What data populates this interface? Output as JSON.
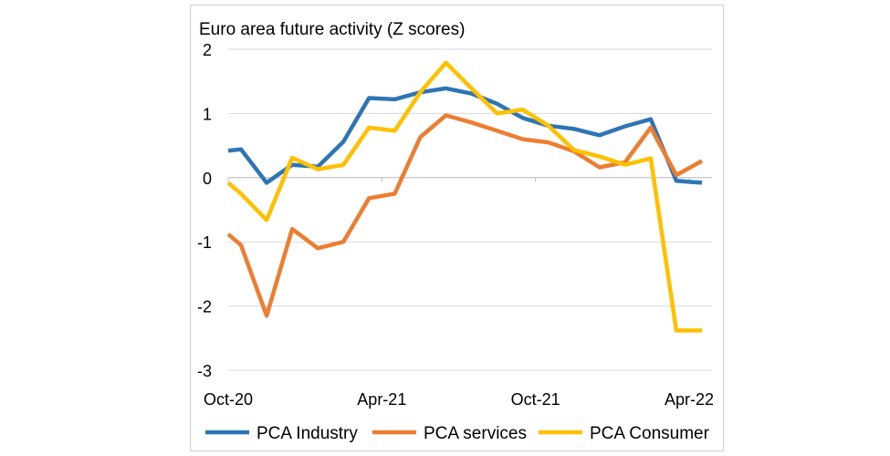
{
  "chart_data": {
    "type": "line",
    "title": "Euro area future activity (Z scores)",
    "xlabel": "",
    "ylabel": "",
    "ylim": [
      -3,
      2
    ],
    "y_ticks": [
      "2",
      "1",
      "0",
      "-1",
      "-2",
      "-3"
    ],
    "x_tick_labels": [
      "Oct-20",
      "Apr-21",
      "Oct-21",
      "Apr-22"
    ],
    "legend_position": "bottom",
    "series": [
      {
        "name": "PCA Industry",
        "color": "#2E75B6",
        "points": [
          [
            0,
            0.42
          ],
          [
            0.5,
            0.44
          ],
          [
            1.5,
            -0.08
          ],
          [
            2.5,
            0.2
          ],
          [
            3.5,
            0.17
          ],
          [
            4.5,
            0.56
          ],
          [
            5.5,
            1.24
          ],
          [
            6.5,
            1.22
          ],
          [
            7.5,
            1.33
          ],
          [
            8.5,
            1.39
          ],
          [
            9.5,
            1.31
          ],
          [
            10.5,
            1.15
          ],
          [
            11.5,
            0.93
          ],
          [
            12.5,
            0.81
          ],
          [
            13.5,
            0.76
          ],
          [
            14.5,
            0.66
          ],
          [
            15.5,
            0.8
          ],
          [
            16.5,
            0.91
          ],
          [
            17.5,
            -0.05
          ],
          [
            18.5,
            -0.08
          ]
        ]
      },
      {
        "name": "PCA services",
        "color": "#ED7D31",
        "points": [
          [
            0,
            -0.88
          ],
          [
            0.5,
            -1.05
          ],
          [
            1.5,
            -2.15
          ],
          [
            2.5,
            -0.8
          ],
          [
            3.5,
            -1.1
          ],
          [
            4.5,
            -1.0
          ],
          [
            5.5,
            -0.32
          ],
          [
            6.5,
            -0.25
          ],
          [
            7.5,
            0.63
          ],
          [
            8.5,
            0.97
          ],
          [
            9.5,
            0.86
          ],
          [
            10.5,
            0.73
          ],
          [
            11.5,
            0.6
          ],
          [
            12.5,
            0.55
          ],
          [
            13.5,
            0.41
          ],
          [
            14.5,
            0.16
          ],
          [
            15.5,
            0.24
          ],
          [
            16.5,
            0.78
          ],
          [
            17.5,
            0.04
          ],
          [
            18.5,
            0.26
          ]
        ]
      },
      {
        "name": "PCA Consumer",
        "color": "#FFC000",
        "points": [
          [
            0,
            -0.08
          ],
          [
            0.5,
            -0.25
          ],
          [
            1.5,
            -0.66
          ],
          [
            2.5,
            0.31
          ],
          [
            3.5,
            0.13
          ],
          [
            4.5,
            0.2
          ],
          [
            5.5,
            0.78
          ],
          [
            6.5,
            0.73
          ],
          [
            7.5,
            1.33
          ],
          [
            8.5,
            1.79
          ],
          [
            9.5,
            1.39
          ],
          [
            10.5,
            1.0
          ],
          [
            11.5,
            1.06
          ],
          [
            12.5,
            0.81
          ],
          [
            13.5,
            0.43
          ],
          [
            14.5,
            0.33
          ],
          [
            15.5,
            0.2
          ],
          [
            16.5,
            0.3
          ],
          [
            17.5,
            -2.38
          ],
          [
            18.5,
            -2.38
          ]
        ]
      }
    ]
  }
}
